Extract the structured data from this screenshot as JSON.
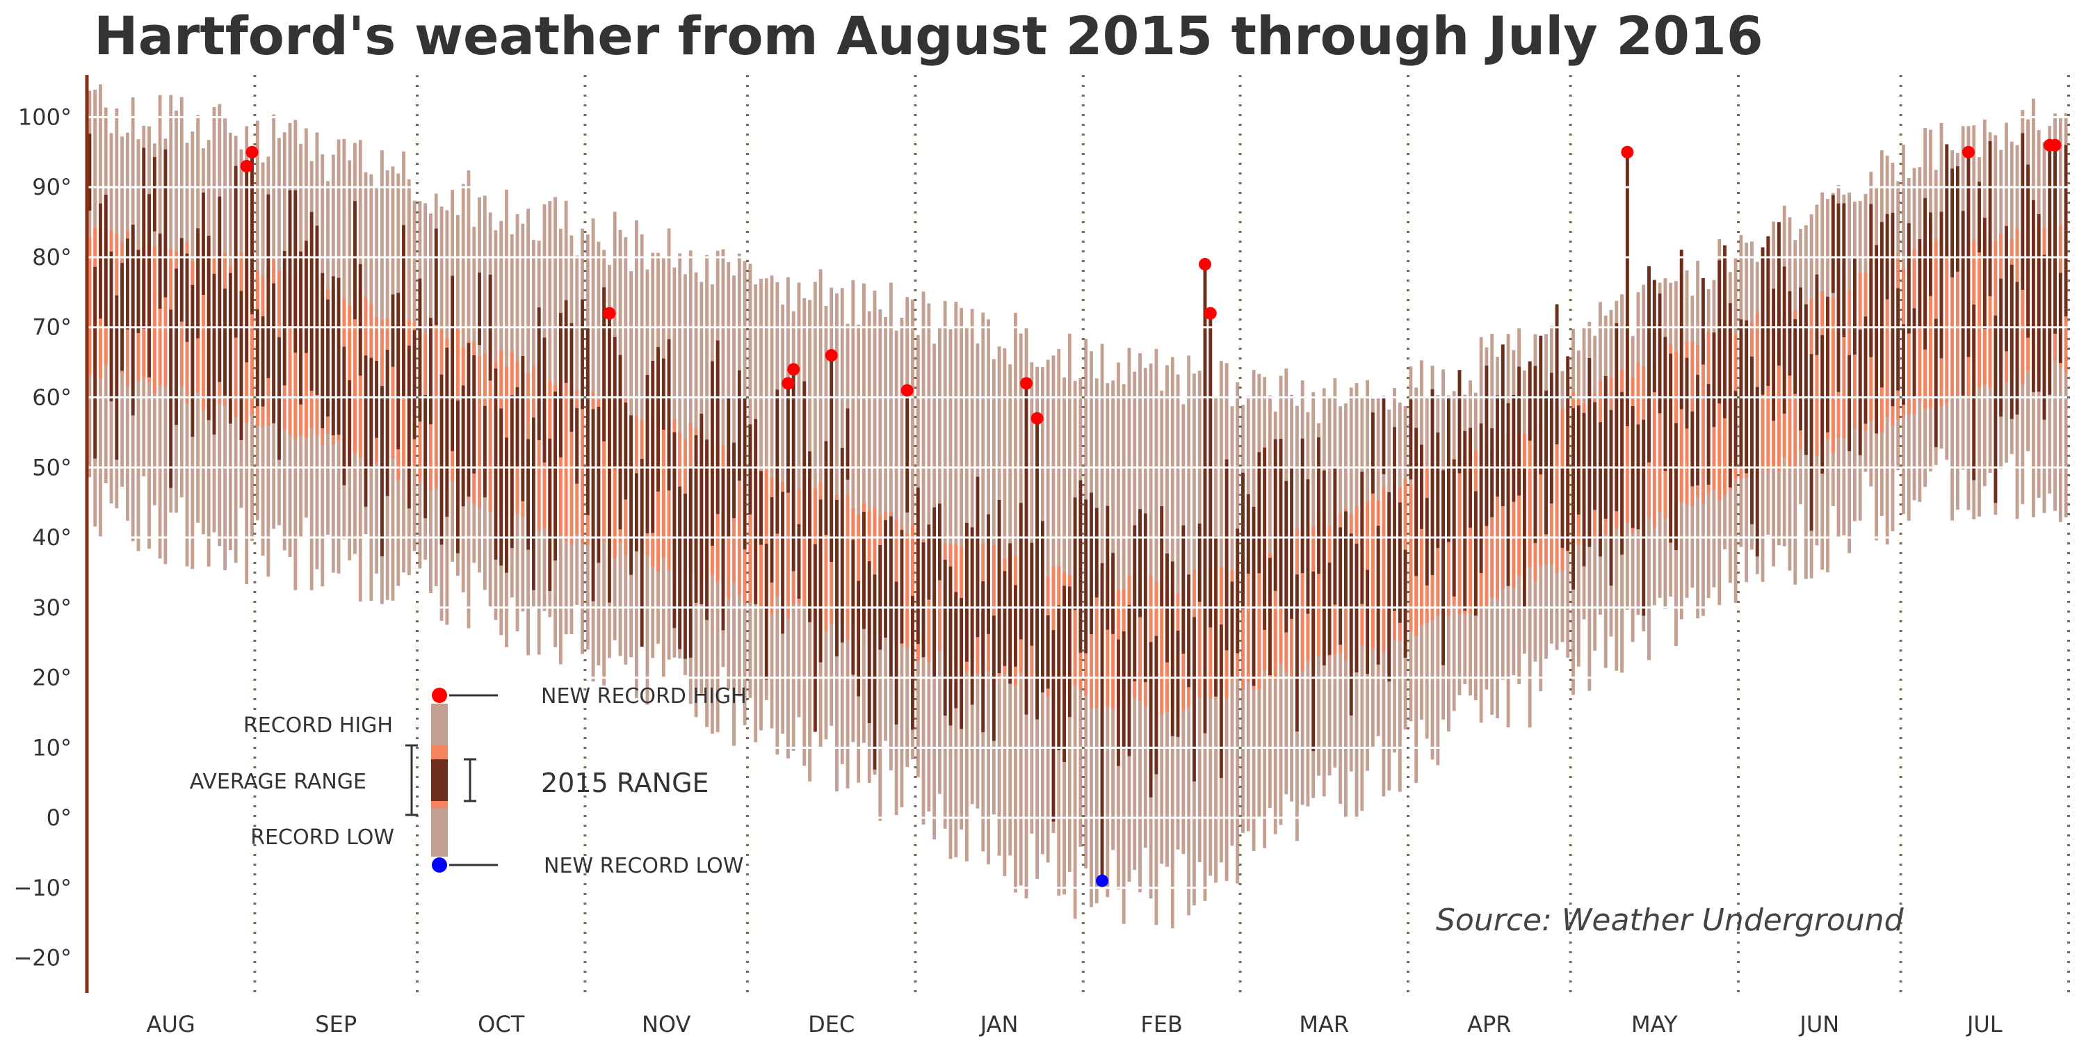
{
  "chart_data": {
    "type": "bar",
    "title": "Hartford's weather from August 2015 through July 2016",
    "source": "Source: Weather Underground",
    "ylim": [
      -25,
      106
    ],
    "yticks": [
      {
        "value": 100,
        "label": "100°"
      },
      {
        "value": 90,
        "label": "90°"
      },
      {
        "value": 80,
        "label": "80°"
      },
      {
        "value": 70,
        "label": "70°"
      },
      {
        "value": 60,
        "label": "60°"
      },
      {
        "value": 50,
        "label": "50°"
      },
      {
        "value": 40,
        "label": "40°"
      },
      {
        "value": 30,
        "label": "30°"
      },
      {
        "value": 20,
        "label": "20°"
      },
      {
        "value": 10,
        "label": "10°"
      },
      {
        "value": 0,
        "label": "0°"
      },
      {
        "value": -10,
        "label": "−10°"
      },
      {
        "value": -20,
        "label": "−20°"
      }
    ],
    "months": [
      "AUG",
      "SEP",
      "OCT",
      "NOV",
      "DEC",
      "JAN",
      "FEB",
      "MAR",
      "APR",
      "MAY",
      "JUN",
      "JUL"
    ],
    "month_days": [
      31,
      30,
      31,
      30,
      31,
      31,
      29,
      31,
      30,
      31,
      30,
      31
    ],
    "grid": true,
    "colors": {
      "record": "#c4a093",
      "average": "#f4845f",
      "actual": "#6d2e1b",
      "new_high": "#ff0000",
      "new_low": "#0000ff",
      "grid": "#ffffff",
      "month_divider": "#7a6a55",
      "left_axis": "#8b2c14"
    },
    "profiles": {
      "record_high": {
        "day": [
          0,
          35,
          80,
          150,
          200,
          230,
          275,
          340,
          366
        ],
        "value": [
          101,
          97,
          86,
          72,
          63,
          60,
          68,
          95,
          101
        ]
      },
      "record_low": {
        "day": [
          0,
          35,
          80,
          150,
          180,
          200,
          240,
          290,
          340,
          366
        ],
        "value": [
          45,
          38,
          29,
          4,
          -9,
          -10,
          7,
          29,
          48,
          47
        ]
      },
      "average_high": {
        "day": [
          0,
          35,
          80,
          150,
          185,
          200,
          240,
          290,
          340,
          366
        ],
        "value": [
          84,
          78,
          65,
          42,
          34,
          33,
          46,
          66,
          81,
          85
        ]
      },
      "average_low": {
        "day": [
          0,
          35,
          80,
          150,
          185,
          200,
          240,
          290,
          340,
          366
        ],
        "value": [
          64,
          56,
          43,
          24,
          17,
          16,
          25,
          43,
          59,
          65
        ]
      }
    },
    "new_record_highs": [
      {
        "day": 29,
        "value": 93
      },
      {
        "day": 30,
        "value": 95
      },
      {
        "day": 96,
        "value": 72
      },
      {
        "day": 129,
        "value": 62
      },
      {
        "day": 130,
        "value": 64
      },
      {
        "day": 137,
        "value": 66
      },
      {
        "day": 151,
        "value": 61
      },
      {
        "day": 173,
        "value": 62
      },
      {
        "day": 175,
        "value": 57
      },
      {
        "day": 206,
        "value": 79
      },
      {
        "day": 207,
        "value": 72
      },
      {
        "day": 284,
        "value": 95
      },
      {
        "day": 347,
        "value": 95
      },
      {
        "day": 362,
        "value": 96
      },
      {
        "day": 363,
        "value": 96
      }
    ],
    "new_record_lows": [
      {
        "day": 187,
        "value": -9
      }
    ],
    "legend": {
      "record_high": "RECORD HIGH",
      "average_range": "AVERAGE RANGE",
      "record_low": "RECORD LOW",
      "new_record_high": "NEW RECORD HIGH",
      "new_record_low": "NEW RECORD LOW",
      "range_2015": "2015 RANGE"
    }
  }
}
